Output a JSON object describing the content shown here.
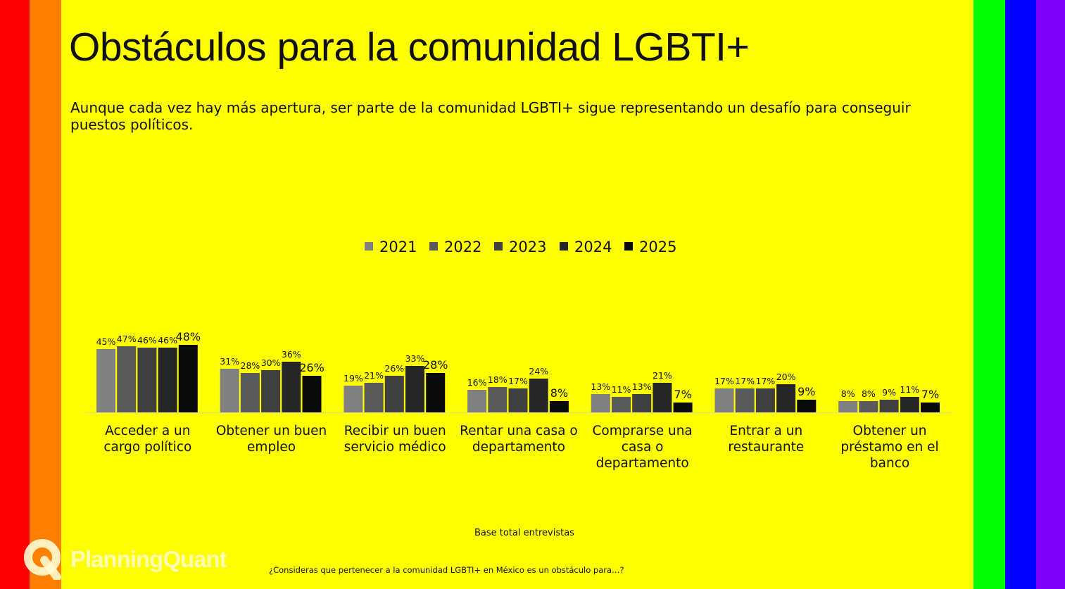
{
  "colors": {
    "background": "#ffff00",
    "stripes": [
      "#ff0000",
      "#ff8000",
      "#00ff00",
      "#0000ff",
      "#8000ff"
    ],
    "series": [
      "#808080",
      "#5a5a5a",
      "#404040",
      "#262626",
      "#0a0a0a"
    ]
  },
  "header": {
    "title": "Obstáculos para la comunidad LGBTI+",
    "subtitle": "Aunque cada vez hay más apertura, ser parte de la comunidad LGBTI+ sigue representando un desafío para conseguir puestos políticos."
  },
  "chart_data": {
    "type": "bar",
    "categories": [
      [
        "Acceder a un",
        "cargo político"
      ],
      [
        "Obtener un buen",
        "empleo"
      ],
      [
        "Recibir un buen",
        "servicio médico"
      ],
      [
        "Rentar una casa o",
        "departamento"
      ],
      [
        "Comprarse una",
        "casa o",
        "departamento"
      ],
      [
        "Entrar a un",
        "restaurante"
      ],
      [
        "Obtener un",
        "préstamo en el",
        "banco"
      ]
    ],
    "series": [
      {
        "name": "2021",
        "values": [
          45,
          31,
          19,
          16,
          13,
          17,
          8
        ]
      },
      {
        "name": "2022",
        "values": [
          47,
          28,
          21,
          18,
          11,
          17,
          8
        ]
      },
      {
        "name": "2023",
        "values": [
          46,
          30,
          26,
          17,
          13,
          17,
          9
        ]
      },
      {
        "name": "2024",
        "values": [
          46,
          36,
          33,
          24,
          21,
          20,
          11
        ]
      },
      {
        "name": "2025",
        "values": [
          48,
          26,
          28,
          8,
          7,
          9,
          7
        ]
      }
    ],
    "value_suffix": "%",
    "legend_position": "top-center",
    "grid": false
  },
  "footer": {
    "base": "Base total entrevistas",
    "question": "¿Consideras que pertenecer a la comunidad LGBTI+ en México es un obstáculo para…?",
    "brand": "PlanningQuant"
  }
}
